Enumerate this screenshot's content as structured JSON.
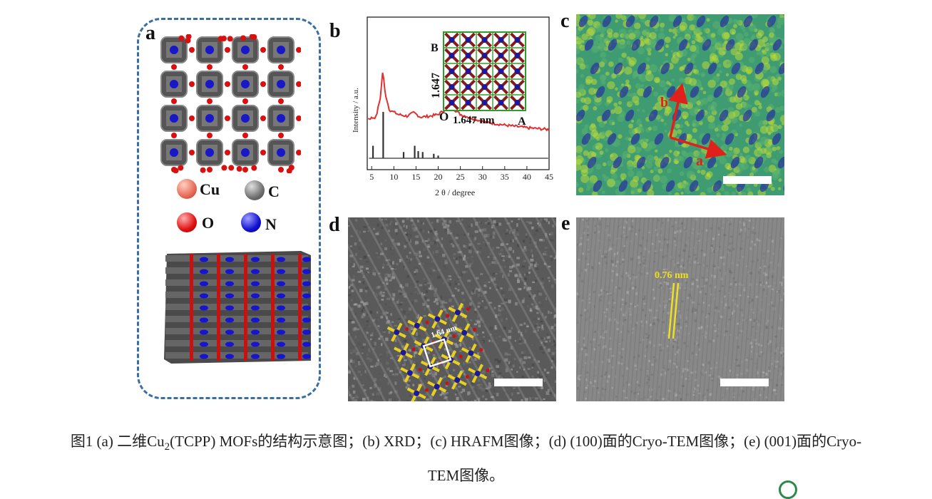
{
  "panels": {
    "a": "a",
    "b": "b",
    "c": "c",
    "d": "d",
    "e": "e"
  },
  "legend": {
    "cu": "Cu",
    "c": "C",
    "o": "O",
    "n": "N",
    "colors": {
      "cu": "#f08070",
      "c": "#6a6a6a",
      "o": "#d81010",
      "n": "#1010c8"
    }
  },
  "xrd": {
    "ylabel": "Intensity / a.u.",
    "xlabel": "2 θ / degree",
    "xticks": [
      "5",
      "10",
      "15",
      "20",
      "25",
      "30",
      "35",
      "40",
      "45"
    ],
    "inset": {
      "b_label": "B",
      "a_label": "A",
      "o_label": "O",
      "side_label": "1.647",
      "bottom_label": "1.647 nm"
    }
  },
  "chart_data": {
    "type": "line",
    "xlabel": "2 θ / degree",
    "ylabel": "Intensity / a.u.",
    "xlim": [
      4,
      45
    ],
    "series": [
      {
        "x": [
          4,
          6,
          7,
          7.5,
          8,
          9,
          11,
          13,
          14.5,
          16,
          18,
          20,
          22,
          23,
          25,
          30,
          35,
          40,
          45
        ],
        "y": [
          0.45,
          0.47,
          0.7,
          1.0,
          0.75,
          0.55,
          0.5,
          0.48,
          0.52,
          0.47,
          0.48,
          0.5,
          0.57,
          0.58,
          0.5,
          0.42,
          0.38,
          0.35,
          0.33
        ]
      },
      {
        "x": [
          5.3,
          7.6,
          12.2,
          14.7,
          15.5,
          16.5,
          19,
          20
        ],
        "y": [
          0.14,
          0.52,
          0.07,
          0.14,
          0.08,
          0.07,
          0.05,
          0.03
        ]
      }
    ]
  },
  "afm": {
    "a_axis": "a",
    "b_axis": "b"
  },
  "tem_d": {
    "spacing": "1.64 nm"
  },
  "tem_e": {
    "spacing": "0.76 nm"
  },
  "caption": {
    "line1_prefix": "图1 (a) 二维Cu",
    "line1_sub": "2",
    "line1_rest": "(TCPP) MOFs的结构示意图；(b) XRD；(c) HRAFM图像；(d) (100)面的Cryo-TEM图像；(e) (001)面的Cryo-",
    "line2": "TEM图像。"
  }
}
